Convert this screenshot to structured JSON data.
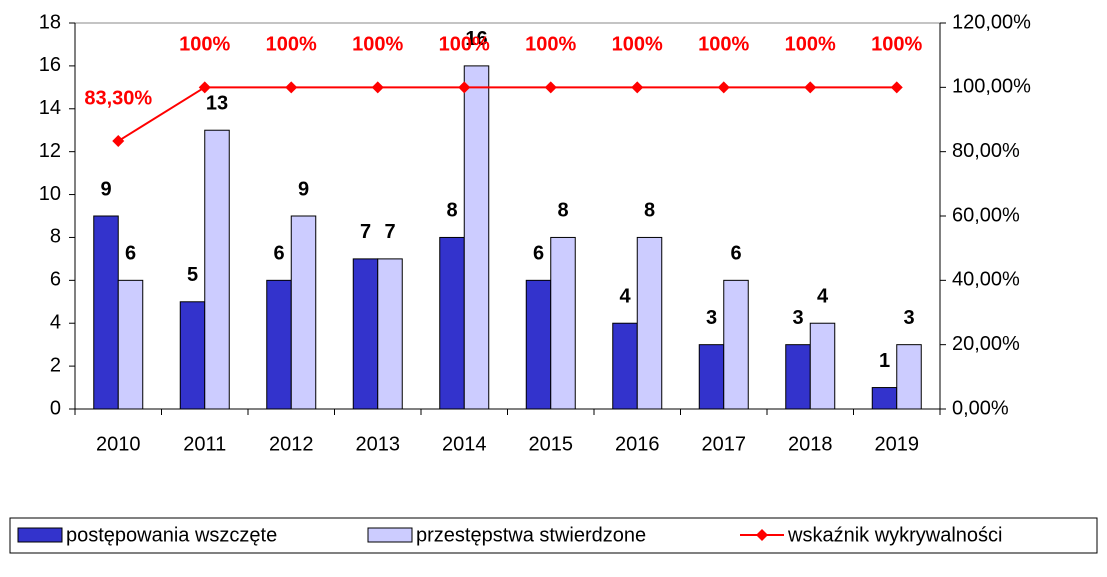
{
  "chart_data": {
    "type": "bar_line",
    "categories": [
      "2010",
      "2011",
      "2012",
      "2013",
      "2014",
      "2015",
      "2016",
      "2017",
      "2018",
      "2019"
    ],
    "series": [
      {
        "name": "postępowania wszczęte",
        "color": "#3333cc",
        "type": "bar",
        "values": [
          9,
          5,
          6,
          7,
          8,
          6,
          4,
          3,
          3,
          1
        ]
      },
      {
        "name": "przestępstwa stwierdzone",
        "color": "#ccccff",
        "type": "bar",
        "values": [
          6,
          13,
          9,
          7,
          16,
          8,
          8,
          6,
          4,
          3
        ]
      },
      {
        "name": "wskaźnik wykrywalności",
        "color": "#ff0000",
        "type": "line",
        "axis": "y2",
        "values": [
          83.3,
          100,
          100,
          100,
          100,
          100,
          100,
          100,
          100,
          100
        ],
        "value_labels": [
          "83,30%",
          "100%",
          "100%",
          "100%",
          "100%",
          "100%",
          "100%",
          "100%",
          "100%",
          "100%"
        ]
      }
    ],
    "ylim": [
      0,
      18
    ],
    "yticks": [
      0,
      2,
      4,
      6,
      8,
      10,
      12,
      14,
      16,
      18
    ],
    "y2lim": [
      0,
      120
    ],
    "y2ticks": [
      {
        "value": 0,
        "label": "0,00%"
      },
      {
        "value": 20,
        "label": "20,00%"
      },
      {
        "value": 40,
        "label": "40,00%"
      },
      {
        "value": 60,
        "label": "60,00%"
      },
      {
        "value": 80,
        "label": "80,00%"
      },
      {
        "value": 100,
        "label": "100,00%"
      },
      {
        "value": 120,
        "label": "120,00%"
      }
    ],
    "grid": false,
    "legend": "bottom"
  }
}
